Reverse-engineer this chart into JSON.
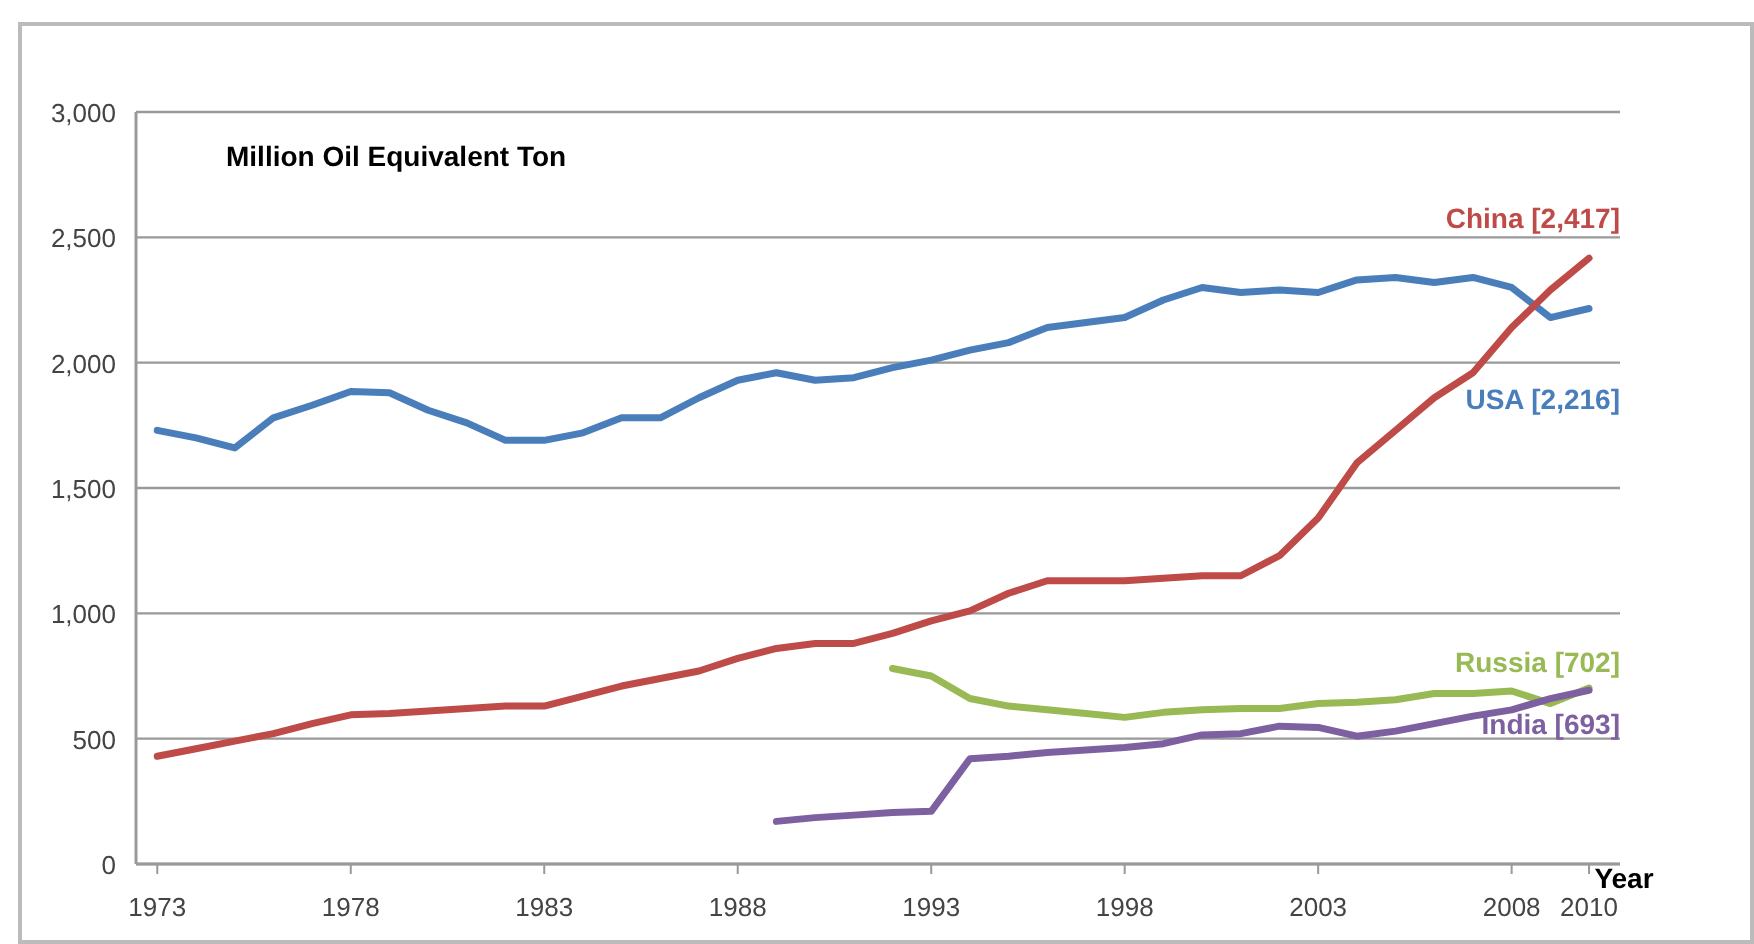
{
  "chart_data": {
    "type": "line",
    "ylabel": "Million Oil Equivalent Ton",
    "xlabel": "Year",
    "x": [
      1973,
      1974,
      1975,
      1976,
      1977,
      1978,
      1979,
      1980,
      1981,
      1982,
      1983,
      1984,
      1985,
      1986,
      1987,
      1988,
      1989,
      1990,
      1991,
      1992,
      1993,
      1994,
      1995,
      1996,
      1997,
      1998,
      1999,
      2000,
      2001,
      2002,
      2003,
      2004,
      2005,
      2006,
      2007,
      2008,
      2009,
      2010
    ],
    "series": [
      {
        "name": "USA [2,216]",
        "color": "#4a7ebb",
        "values": [
          1730,
          1700,
          1660,
          1780,
          1830,
          1885,
          1880,
          1810,
          1760,
          1690,
          1690,
          1720,
          1780,
          1780,
          1860,
          1930,
          1960,
          1930,
          1940,
          1980,
          2010,
          2050,
          2080,
          2140,
          2160,
          2180,
          2250,
          2300,
          2280,
          2290,
          2280,
          2330,
          2340,
          2320,
          2340,
          2300,
          2180,
          2216
        ]
      },
      {
        "name": "China [2,417]",
        "color": "#be4b48",
        "values": [
          430,
          460,
          490,
          520,
          560,
          595,
          600,
          610,
          620,
          630,
          630,
          670,
          710,
          740,
          770,
          820,
          860,
          880,
          880,
          920,
          970,
          1010,
          1080,
          1130,
          1130,
          1130,
          1140,
          1150,
          1150,
          1230,
          1380,
          1600,
          1730,
          1860,
          1960,
          2140,
          2290,
          2417
        ]
      },
      {
        "name": "Russia [702]",
        "color": "#98b954",
        "values": [
          null,
          null,
          null,
          null,
          null,
          null,
          null,
          null,
          null,
          null,
          null,
          null,
          null,
          null,
          null,
          null,
          null,
          null,
          null,
          780,
          750,
          660,
          630,
          615,
          600,
          585,
          605,
          615,
          620,
          620,
          640,
          645,
          655,
          680,
          680,
          690,
          640,
          702
        ]
      },
      {
        "name": "India [693]",
        "color": "#7d60a0",
        "values": [
          null,
          null,
          null,
          null,
          null,
          null,
          null,
          null,
          null,
          null,
          null,
          null,
          null,
          null,
          null,
          null,
          170,
          185,
          195,
          205,
          210,
          420,
          430,
          445,
          455,
          465,
          480,
          515,
          520,
          550,
          545,
          510,
          530,
          560,
          590,
          615,
          660,
          693
        ]
      }
    ],
    "xlim": [
      1972.45,
      2010.8
    ],
    "xticks": [
      1973,
      1978,
      1983,
      1988,
      1993,
      1998,
      2003,
      2008,
      2010
    ],
    "ylim": [
      0,
      3000
    ],
    "yticks": [
      {
        "value": 0,
        "label": "0"
      },
      {
        "value": 500,
        "label": "500"
      },
      {
        "value": 1000,
        "label": "1,000"
      },
      {
        "value": 1500,
        "label": "1,500"
      },
      {
        "value": 2000,
        "label": "2,000"
      },
      {
        "value": 2500,
        "label": "2,500"
      },
      {
        "value": 3000,
        "label": "3,000"
      }
    ],
    "grid": "y",
    "marker": "none",
    "line_style": "solid"
  }
}
